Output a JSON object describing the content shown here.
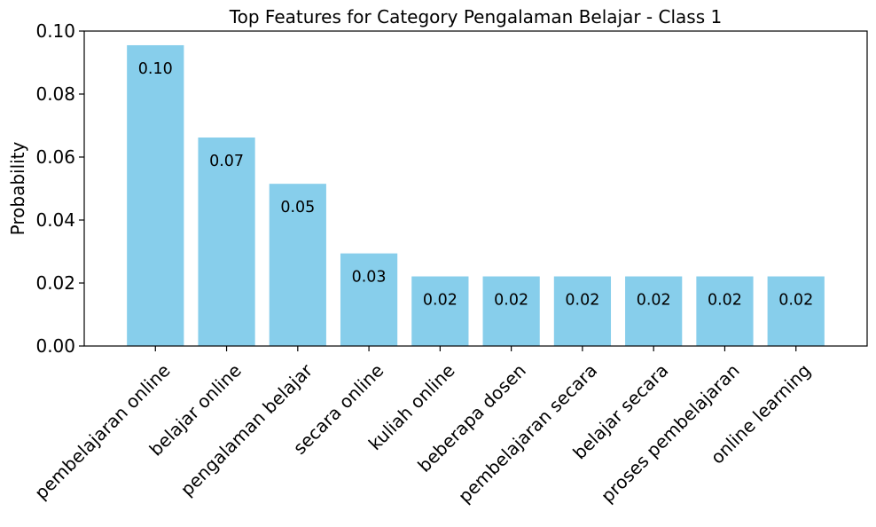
{
  "chart_data": {
    "type": "bar",
    "title": "Top Features for Category Pengalaman Belajar - Class 1",
    "xlabel": "",
    "ylabel": "Probability",
    "categories": [
      "pembelajaran online",
      "belajar online",
      "pengalaman belajar",
      "secara online",
      "kuliah online",
      "beberapa dosen",
      "pembelajaran secara",
      "belajar secara",
      "proses pembelajaran",
      "online learning"
    ],
    "values": [
      0.0955,
      0.0662,
      0.0515,
      0.0294,
      0.0221,
      0.0221,
      0.0221,
      0.0221,
      0.0221,
      0.0221
    ],
    "data_labels": [
      "0.10",
      "0.07",
      "0.05",
      "0.03",
      "0.02",
      "0.02",
      "0.02",
      "0.02",
      "0.02",
      "0.02"
    ],
    "ylim": [
      0,
      0.1
    ],
    "yticks": [
      0,
      0.02,
      0.04,
      0.06,
      0.08,
      0.1
    ],
    "ytick_labels": [
      "0.00",
      "0.02",
      "0.04",
      "0.06",
      "0.08",
      "0.10"
    ],
    "bar_color": "#87ceeb",
    "grid": false,
    "legend": "none"
  }
}
